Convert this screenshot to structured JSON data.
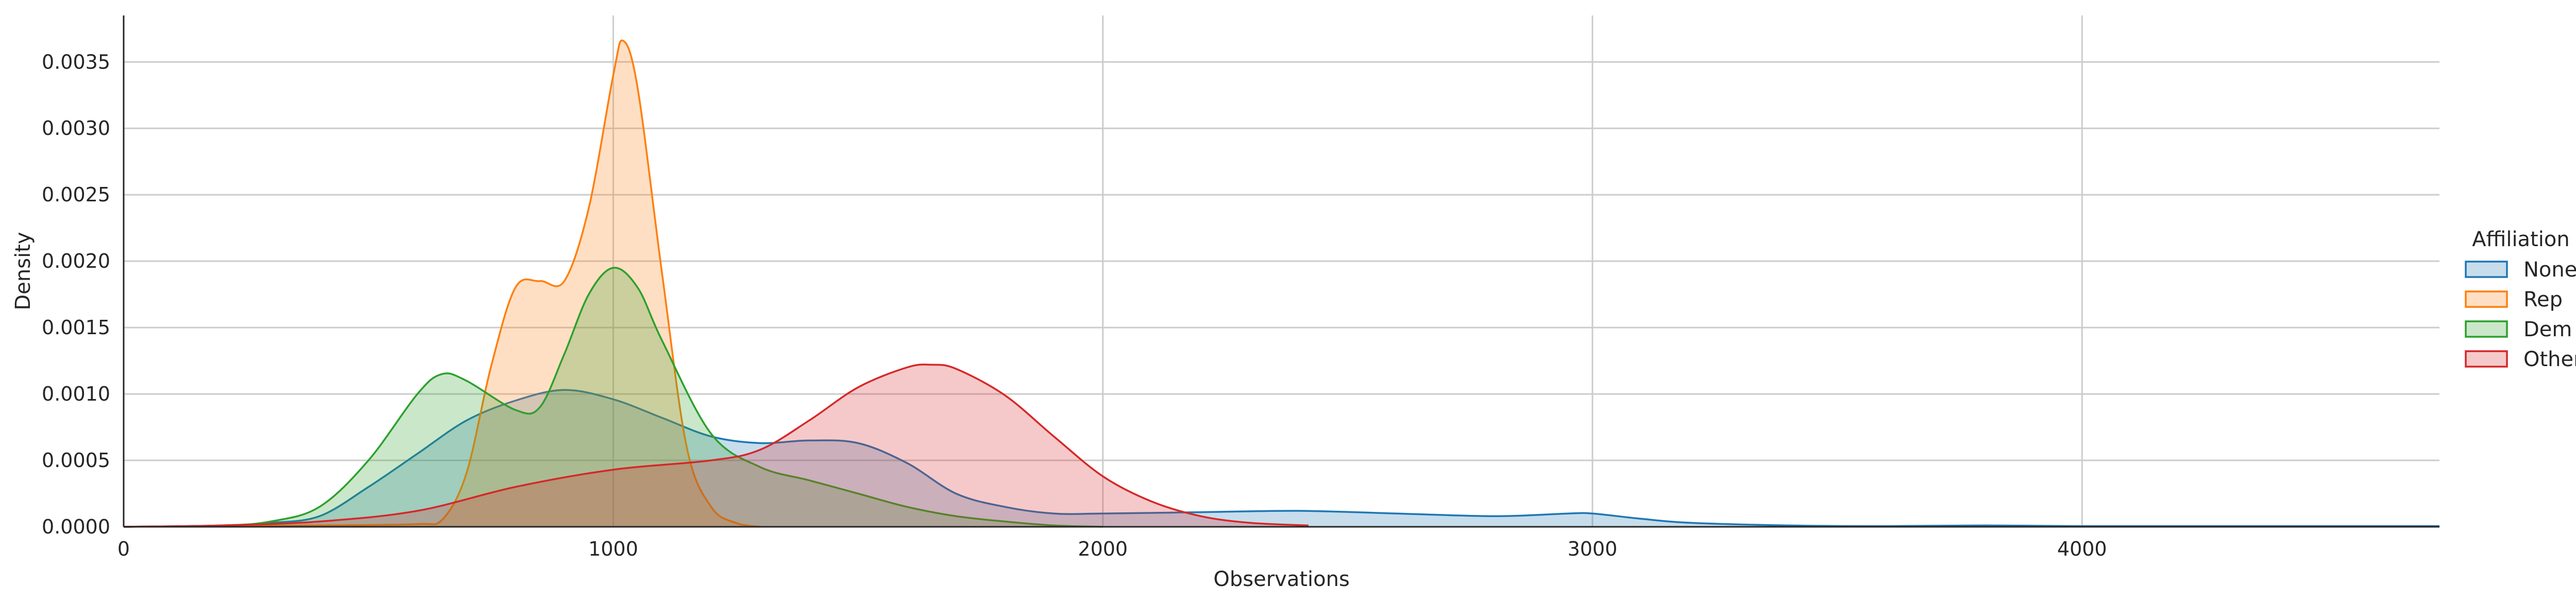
{
  "chart_data": {
    "type": "area",
    "xlabel": "Observations",
    "ylabel": "Density",
    "xlim": [
      0,
      4730
    ],
    "ylim": [
      0,
      0.00385
    ],
    "x_ticks": [
      0,
      1000,
      2000,
      3000,
      4000
    ],
    "x_tick_labels": [
      "0",
      "1000",
      "2000",
      "3000",
      "4000"
    ],
    "y_ticks": [
      0,
      0.0005,
      0.001,
      0.0015,
      0.002,
      0.0025,
      0.003,
      0.0035
    ],
    "y_tick_labels": [
      "0.0000",
      "0.0005",
      "0.0010",
      "0.0015",
      "0.0020",
      "0.0025",
      "0.0030",
      "0.0035"
    ],
    "grid": true,
    "legend": {
      "title": "Affiliation",
      "placement": "right"
    },
    "series": [
      {
        "name": "None",
        "color": "#1f77b4",
        "x": [
          0,
          200,
          300,
          400,
          500,
          600,
          700,
          800,
          900,
          1000,
          1100,
          1200,
          1300,
          1400,
          1500,
          1600,
          1700,
          1800,
          1900,
          2000,
          2200,
          2400,
          2600,
          2800,
          2950,
          3000,
          3100,
          3200,
          3400,
          3600,
          3800,
          4000,
          4200,
          4400,
          4730
        ],
        "y": [
          0,
          1e-05,
          3e-05,
          8e-05,
          0.0003,
          0.00055,
          0.0008,
          0.00095,
          0.00103,
          0.00096,
          0.00082,
          0.00068,
          0.00063,
          0.00065,
          0.00063,
          0.00048,
          0.00025,
          0.00015,
          0.0001,
          0.0001,
          0.00011,
          0.00012,
          0.0001,
          8e-05,
          0.0001,
          0.0001,
          6e-05,
          3e-05,
          1e-05,
          5e-06,
          1e-05,
          5e-06,
          5e-06,
          5e-06,
          5e-06
        ]
      },
      {
        "name": "Rep",
        "color": "#ff7f0e",
        "x": [
          0,
          400,
          600,
          650,
          700,
          750,
          800,
          850,
          900,
          950,
          1000,
          1020,
          1050,
          1100,
          1150,
          1200,
          1250,
          1300
        ],
        "y": [
          0,
          1e-05,
          2e-05,
          5e-05,
          0.0004,
          0.0012,
          0.0018,
          0.00185,
          0.00185,
          0.0024,
          0.0034,
          0.00366,
          0.0033,
          0.0019,
          0.0006,
          0.00015,
          3e-05,
          0
        ]
      },
      {
        "name": "Dem",
        "color": "#2ca02c",
        "x": [
          0,
          200,
          300,
          400,
          500,
          600,
          650,
          700,
          800,
          850,
          900,
          950,
          1000,
          1050,
          1100,
          1200,
          1300,
          1400,
          1500,
          1600,
          1700,
          1800,
          1900,
          2000
        ],
        "y": [
          0,
          1e-05,
          4e-05,
          0.00015,
          0.0005,
          0.001,
          0.00115,
          0.0011,
          0.00088,
          0.0009,
          0.0013,
          0.00175,
          0.00195,
          0.0018,
          0.0014,
          0.0007,
          0.00045,
          0.00035,
          0.00025,
          0.00015,
          8e-05,
          4e-05,
          1e-05,
          0
        ]
      },
      {
        "name": "Other",
        "color": "#d62728",
        "x": [
          0,
          200,
          400,
          600,
          800,
          1000,
          1200,
          1300,
          1400,
          1500,
          1600,
          1650,
          1700,
          1800,
          1900,
          2000,
          2100,
          2200,
          2300,
          2420
        ],
        "y": [
          0,
          1e-05,
          4e-05,
          0.00012,
          0.0003,
          0.00043,
          0.0005,
          0.00058,
          0.0008,
          0.00105,
          0.0012,
          0.00122,
          0.00119,
          0.00099,
          0.00068,
          0.00038,
          0.00019,
          8e-05,
          3e-05,
          1e-05
        ]
      }
    ]
  }
}
